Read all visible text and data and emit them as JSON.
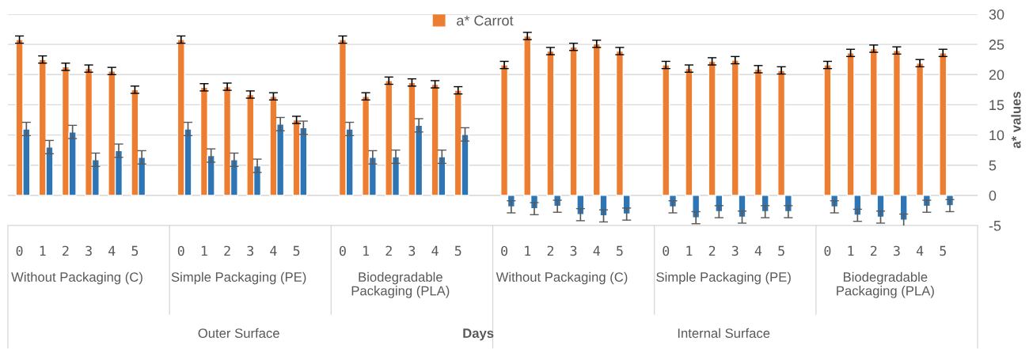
{
  "chart_data": {
    "type": "bar",
    "categories": [
      "0",
      "1",
      "2",
      "3",
      "4",
      "5",
      null,
      "0",
      "1",
      "2",
      "3",
      "4",
      "5",
      null,
      "0",
      "1",
      "2",
      "3",
      "4",
      "5",
      null,
      "0",
      "1",
      "2",
      "3",
      "4",
      "5",
      null,
      "0",
      "1",
      "2",
      "3",
      "4",
      "5",
      null,
      "0",
      "1",
      "2",
      "3",
      "4",
      "5",
      null
    ],
    "series": [
      {
        "name": "a* Carrot",
        "color": "#ed7d31",
        "values": [
          25.8,
          22.5,
          21.3,
          21.0,
          20.6,
          17.5,
          null,
          25.8,
          17.9,
          18.0,
          16.7,
          16.4,
          12.5,
          null,
          25.8,
          16.4,
          19.0,
          18.7,
          18.4,
          17.4,
          null,
          21.6,
          26.4,
          23.9,
          24.6,
          25.1,
          23.9,
          null,
          21.6,
          21.0,
          22.2,
          22.4,
          20.9,
          20.7,
          null,
          21.6,
          23.6,
          24.3,
          24.0,
          21.9,
          23.6,
          null
        ],
        "errors": [
          0.6,
          0.6,
          0.6,
          0.6,
          0.6,
          0.6,
          null,
          0.6,
          0.6,
          0.6,
          0.6,
          0.6,
          0.6,
          null,
          0.6,
          0.6,
          0.6,
          0.6,
          0.6,
          0.6,
          null,
          0.6,
          0.6,
          0.6,
          0.6,
          0.6,
          0.6,
          null,
          0.6,
          0.6,
          0.6,
          0.6,
          0.6,
          0.6,
          null,
          0.6,
          0.6,
          0.6,
          0.6,
          0.6,
          0.6,
          null
        ]
      },
      {
        "color": "#2e75b6",
        "values": [
          11.0,
          8.0,
          10.5,
          5.9,
          7.4,
          6.3,
          null,
          11.0,
          6.6,
          5.9,
          4.9,
          11.8,
          11.2,
          null,
          11.0,
          6.3,
          6.4,
          11.6,
          6.4,
          10.1,
          null,
          -1.9,
          -2.2,
          -1.8,
          -3.2,
          -3.4,
          -3.1,
          null,
          -1.9,
          -3.7,
          -2.7,
          -3.6,
          -2.7,
          -2.7,
          null,
          -1.9,
          -3.3,
          -3.6,
          -4.1,
          -1.8,
          -1.7,
          null
        ],
        "errors": [
          1.1,
          1.1,
          1.1,
          1.1,
          1.1,
          1.1,
          null,
          1.1,
          1.1,
          1.1,
          1.1,
          1.1,
          1.1,
          null,
          1.1,
          1.1,
          1.1,
          1.1,
          1.1,
          1.1,
          null,
          1.0,
          1.0,
          1.0,
          1.0,
          1.0,
          1.0,
          null,
          1.0,
          1.0,
          1.0,
          1.0,
          1.0,
          1.0,
          null,
          1.0,
          1.0,
          1.0,
          1.0,
          1.0,
          1.0,
          null
        ]
      }
    ],
    "ylabel": "a* values",
    "ylim": [
      -5,
      30
    ],
    "yticks": [
      -5,
      0,
      5,
      10,
      15,
      20,
      25,
      30
    ],
    "grid": "y",
    "legend": "top",
    "annotations": [
      "Without Packaging (C)",
      "Simple Packaging (PE)",
      "Biodegradable\nPackaging (PLA)",
      "Without Packaging (C)",
      "Simple Packaging (PE)",
      "Biodegradable\nPackaging (PLA)",
      "Outer Surface",
      "Internal Surface",
      "Days"
    ]
  }
}
